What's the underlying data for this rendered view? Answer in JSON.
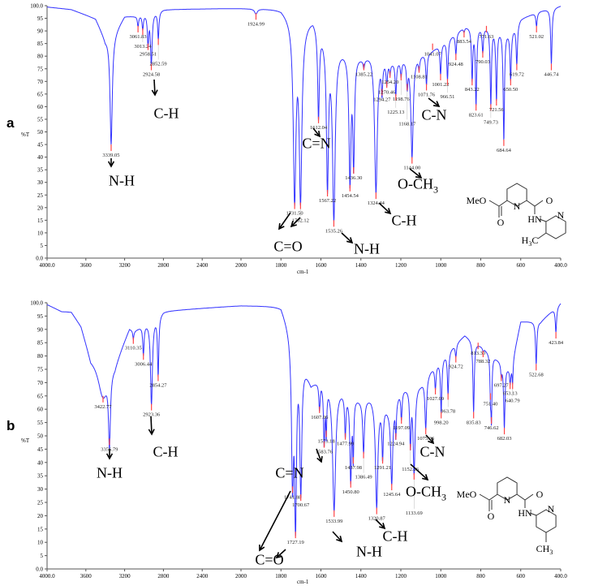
{
  "chart_data": [
    {
      "panel": "a",
      "type": "line",
      "xlabel": "cm-1",
      "ylabel": "%T",
      "xlim": [
        4000,
        400
      ],
      "ylim": [
        0,
        100
      ],
      "x_ticks": [
        "4000.0",
        "3600",
        "3200",
        "2800",
        "2400",
        "2000",
        "1800",
        "1600",
        "1400",
        "1200",
        "1000",
        "800",
        "600",
        "400.0"
      ],
      "y_ticks": [
        "0.0",
        "5",
        "10",
        "15",
        "20",
        "25",
        "30",
        "35",
        "40",
        "45",
        "50",
        "55",
        "60",
        "65",
        "70",
        "75",
        "80",
        "85",
        "90",
        "95",
        "100.0"
      ],
      "baseline": [
        [
          4000,
          99.5
        ],
        [
          3750,
          98.5
        ],
        [
          3500,
          95
        ],
        [
          3400,
          87
        ],
        [
          3300,
          90
        ],
        [
          3200,
          96
        ],
        [
          3100,
          96
        ],
        [
          2800,
          98.5
        ],
        [
          2000,
          99
        ],
        [
          1800,
          99
        ],
        [
          1700,
          93
        ],
        [
          1640,
          96
        ],
        [
          1550,
          85
        ],
        [
          1450,
          82
        ],
        [
          1385,
          80
        ],
        [
          1350,
          82
        ],
        [
          1250,
          78
        ],
        [
          1150,
          80
        ],
        [
          1050,
          82
        ],
        [
          950,
          88
        ],
        [
          880,
          92
        ],
        [
          750,
          92
        ],
        [
          650,
          90
        ],
        [
          600,
          95
        ],
        [
          500,
          98
        ],
        [
          400,
          100
        ]
      ],
      "peaks": [
        {
          "x": 3339.05,
          "label": "3339.05",
          "t": 45,
          "w": 14
        },
        {
          "x": 3061.83,
          "label": "3061.83",
          "t": 92,
          "w": 8
        },
        {
          "x": 3013.24,
          "label": "3013.24",
          "t": 91,
          "w": 8
        },
        {
          "x": 2958.51,
          "label": "2958.51",
          "t": 85,
          "w": 8
        },
        {
          "x": 2924.58,
          "label": "2924.58",
          "t": 77,
          "w": 10
        },
        {
          "x": 2852.59,
          "label": "2852.59",
          "t": 87,
          "w": 8
        },
        {
          "x": 1924.99,
          "label": "1924.99",
          "t": 97,
          "w": 8
        },
        {
          "x": 1731.5,
          "label": "1731.50",
          "t": 22,
          "w": 8
        },
        {
          "x": 1702.12,
          "label": "1702.12",
          "t": 22,
          "w": 8
        },
        {
          "x": 1612.04,
          "label": "1612.04",
          "t": 56,
          "w": 5
        },
        {
          "x": 1567.22,
          "label": "1567.22",
          "t": 27,
          "w": 6
        },
        {
          "x": 1535.26,
          "label": "1535.26",
          "t": 15,
          "w": 8
        },
        {
          "x": 1454.54,
          "label": "1454.54",
          "t": 29,
          "w": 6
        },
        {
          "x": 1436.3,
          "label": "1436.30",
          "t": 36,
          "w": 5
        },
        {
          "x": 1385.22,
          "label": "1385.22",
          "t": 77,
          "w": 4
        },
        {
          "x": 1324.44,
          "label": "1324.44",
          "t": 26,
          "w": 8
        },
        {
          "x": 1294.27,
          "label": "1294.27",
          "t": 67,
          "w": 4
        },
        {
          "x": 1270.46,
          "label": "1270.46",
          "t": 70,
          "w": 4
        },
        {
          "x": 1254.2,
          "label": "1254.20",
          "t": 74,
          "w": 3
        },
        {
          "x": 1225.13,
          "label": "1225.13",
          "t": 65,
          "w": 4
        },
        {
          "x": 1198.76,
          "label": "1198.76",
          "t": 73,
          "w": 4
        },
        {
          "x": 1168.17,
          "label": "1168.17",
          "t": 69,
          "w": 4
        },
        {
          "x": 1144.0,
          "label": "1144.00",
          "t": 40,
          "w": 7
        },
        {
          "x": 1108.81,
          "label": "1108.81",
          "t": 76,
          "w": 4
        },
        {
          "x": 1071.76,
          "label": "1071.76",
          "t": 69,
          "w": 4
        },
        {
          "x": 1041.07,
          "label": "1041.07",
          "t": 85,
          "w": 4
        },
        {
          "x": 1001.22,
          "label": "1001.22",
          "t": 73,
          "w": 4
        },
        {
          "x": 966.51,
          "label": "966.51",
          "t": 71,
          "w": 4
        },
        {
          "x": 924.48,
          "label": "924.48",
          "t": 81,
          "w": 4
        },
        {
          "x": 883.54,
          "label": "883.54",
          "t": 90,
          "w": 4
        },
        {
          "x": 843.22,
          "label": "843.22",
          "t": 71,
          "w": 4
        },
        {
          "x": 823.61,
          "label": "823.61",
          "t": 61,
          "w": 4
        },
        {
          "x": 790.03,
          "label": "790.03",
          "t": 82,
          "w": 4
        },
        {
          "x": 771.63,
          "label": "771.63",
          "t": 92,
          "w": 3
        },
        {
          "x": 749.73,
          "label": "749.73",
          "t": 61,
          "w": 4
        },
        {
          "x": 721.56,
          "label": "721.56",
          "t": 63,
          "w": 4
        },
        {
          "x": 684.64,
          "label": "684.64",
          "t": 47,
          "w": 4
        },
        {
          "x": 650.5,
          "label": "650.50",
          "t": 71,
          "w": 4
        },
        {
          "x": 619.72,
          "label": "619.72",
          "t": 77,
          "w": 4
        },
        {
          "x": 521.02,
          "label": "521.02",
          "t": 92,
          "w": 4
        },
        {
          "x": 446.74,
          "label": "446.74",
          "t": 77,
          "w": 4
        }
      ]
    },
    {
      "panel": "b",
      "type": "line",
      "xlabel": "cm-1",
      "ylabel": "%T",
      "xlim": [
        4000,
        400
      ],
      "ylim": [
        0,
        100
      ],
      "x_ticks": [
        "4000.0",
        "3600",
        "3200",
        "2800",
        "2400",
        "2000",
        "1800",
        "1600",
        "1400",
        "1200",
        "1000",
        "800",
        "600",
        "400.0"
      ],
      "y_ticks": [
        "0.0",
        "5",
        "10",
        "15",
        "20",
        "25",
        "30",
        "35",
        "40",
        "45",
        "50",
        "55",
        "60",
        "65",
        "70",
        "75",
        "80",
        "85",
        "90",
        "95",
        "100.0"
      ],
      "baseline": [
        [
          4000,
          99.5
        ],
        [
          3850,
          97
        ],
        [
          3750,
          97
        ],
        [
          3650,
          92
        ],
        [
          3550,
          80
        ],
        [
          3300,
          78
        ],
        [
          3150,
          91
        ],
        [
          3100,
          90
        ],
        [
          2800,
          97
        ],
        [
          2000,
          99
        ],
        [
          1800,
          99
        ],
        [
          1720,
          85
        ],
        [
          1650,
          70
        ],
        [
          1600,
          72
        ],
        [
          1500,
          68
        ],
        [
          1400,
          64
        ],
        [
          1350,
          65
        ],
        [
          1250,
          60
        ],
        [
          1200,
          68
        ],
        [
          1100,
          70
        ],
        [
          1050,
          75
        ],
        [
          950,
          83
        ],
        [
          880,
          88
        ],
        [
          800,
          84
        ],
        [
          700,
          78
        ],
        [
          650,
          75
        ],
        [
          600,
          93
        ],
        [
          500,
          93
        ],
        [
          400,
          100
        ]
      ],
      "peaks": [
        {
          "x": 3422.77,
          "label": "3422.77",
          "t": 65,
          "w": 60
        },
        {
          "x": 3356.79,
          "label": "3356.79",
          "t": 49,
          "w": 12
        },
        {
          "x": 3110.35,
          "label": "3110.35",
          "t": 87,
          "w": 6
        },
        {
          "x": 3006.44,
          "label": "3006.44",
          "t": 81,
          "w": 8
        },
        {
          "x": 2923.36,
          "label": "2923.36",
          "t": 62,
          "w": 12
        },
        {
          "x": 2854.27,
          "label": "2854.27",
          "t": 73,
          "w": 8
        },
        {
          "x": 1741.88,
          "label": "1741.88",
          "t": 31,
          "w": 6
        },
        {
          "x": 1727.19,
          "label": "1727.19",
          "t": 14,
          "w": 6
        },
        {
          "x": 1700.67,
          "label": "1700.67",
          "t": 28,
          "w": 6
        },
        {
          "x": 1607.06,
          "label": "1607.06",
          "t": 61,
          "w": 4
        },
        {
          "x": 1583.76,
          "label": "1583.76",
          "t": 48,
          "w": 4
        },
        {
          "x": 1573.18,
          "label": "1573.18",
          "t": 52,
          "w": 3
        },
        {
          "x": 1533.99,
          "label": "1533.99",
          "t": 22,
          "w": 9
        },
        {
          "x": 1477.99,
          "label": "1477.99",
          "t": 51,
          "w": 4
        },
        {
          "x": 1450.8,
          "label": "1450.80",
          "t": 33,
          "w": 5
        },
        {
          "x": 1437.98,
          "label": "1437.98",
          "t": 42,
          "w": 3
        },
        {
          "x": 1386.49,
          "label": "1386.49",
          "t": 44,
          "w": 5
        },
        {
          "x": 1320.87,
          "label": "1320.87",
          "t": 23,
          "w": 7
        },
        {
          "x": 1291.21,
          "label": "1291.21",
          "t": 42,
          "w": 4
        },
        {
          "x": 1245.64,
          "label": "1245.64",
          "t": 32,
          "w": 6
        },
        {
          "x": 1224.94,
          "label": "1224.94",
          "t": 51,
          "w": 3
        },
        {
          "x": 1197.09,
          "label": "1197.09",
          "t": 57,
          "w": 4
        },
        {
          "x": 1152.26,
          "label": "1152.26",
          "t": 47,
          "w": 4
        },
        {
          "x": 1133.69,
          "label": "1133.69",
          "t": 36,
          "w": 6
        },
        {
          "x": 1075.36,
          "label": "1075.36",
          "t": 53,
          "w": 5
        },
        {
          "x": 1027.09,
          "label": "1027.09",
          "t": 68,
          "w": 4
        },
        {
          "x": 998.2,
          "label": "998.20",
          "t": 59,
          "w": 4
        },
        {
          "x": 963.78,
          "label": "963.78",
          "t": 66,
          "w": 4
        },
        {
          "x": 924.72,
          "label": "924.72",
          "t": 80,
          "w": 4
        },
        {
          "x": 835.83,
          "label": "835.83",
          "t": 59,
          "w": 4
        },
        {
          "x": 813.3,
          "label": "813.30",
          "t": 85,
          "w": 3
        },
        {
          "x": 788.32,
          "label": "788.32",
          "t": 82,
          "w": 3
        },
        {
          "x": 751.4,
          "label": "751.40",
          "t": 66,
          "w": 3
        },
        {
          "x": 746.62,
          "label": "746.62",
          "t": 57,
          "w": 3
        },
        {
          "x": 697.27,
          "label": "697.27",
          "t": 73,
          "w": 3
        },
        {
          "x": 682.03,
          "label": "682.03",
          "t": 53,
          "w": 4
        },
        {
          "x": 653.13,
          "label": "653.13",
          "t": 70,
          "w": 3
        },
        {
          "x": 640.79,
          "label": "640.79",
          "t": 70,
          "w": 3
        },
        {
          "x": 522.68,
          "label": "522.68",
          "t": 77,
          "w": 4
        },
        {
          "x": 423.84,
          "label": "423.84",
          "t": 89,
          "w": 4
        }
      ]
    }
  ],
  "panels": {
    "a": {
      "letter": "a",
      "annotations": {
        "nh1": "N-H",
        "ch1": "C-H",
        "co": "C=O",
        "cn_double": "C=N",
        "nh2": "N-H",
        "ch2": "C-H",
        "och3": "O-CH",
        "och3_sub": "3",
        "cn": "C-N"
      },
      "structure": {
        "meo": "MeO",
        "o1": "O",
        "n1": "N",
        "o2": "O",
        "hn": "HN",
        "n2": "N",
        "me": "H",
        "me_sub": "3",
        "me_c": "C"
      }
    },
    "b": {
      "letter": "b",
      "annotations": {
        "nh1": "N-H",
        "ch1": "C-H",
        "co": "C=O",
        "cn_double": "C=N",
        "nh2": "N-H",
        "ch2": "C-H",
        "och3": "O-CH",
        "och3_sub": "3",
        "cn": "C-N"
      },
      "structure": {
        "meo": "MeO",
        "o1": "O",
        "n1": "N",
        "o2": "O",
        "hn": "HN",
        "n2": "N",
        "me": "CH",
        "me_sub": "3"
      }
    }
  },
  "colors": {
    "spectrum": "#3333ff",
    "peak_marker": "#ff4444",
    "axis": "#555555"
  }
}
